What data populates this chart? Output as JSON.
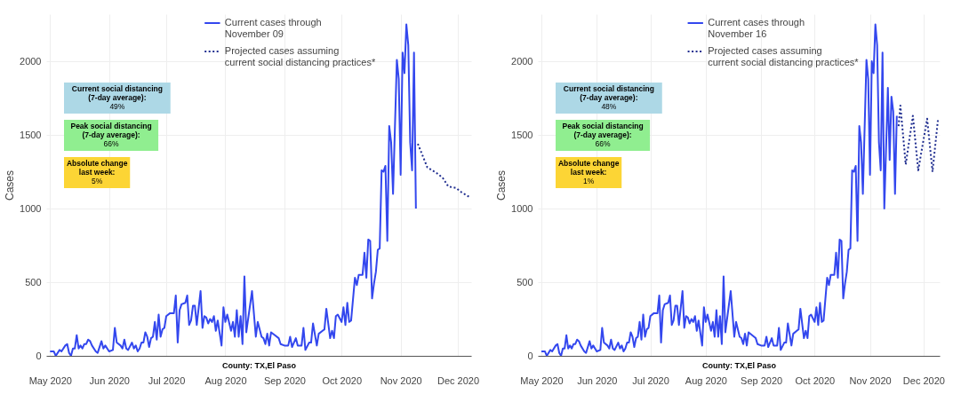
{
  "chart_data": [
    {
      "type": "line",
      "xlabel": "County: TX,El Paso",
      "ylabel": "Cases",
      "xlim": [
        "2020-04-29",
        "2020-12-08"
      ],
      "ylim": [
        0,
        2320
      ],
      "xticks": [
        {
          "value": "2020-05-01",
          "label": "May 2020"
        },
        {
          "value": "2020-06-01",
          "label": "Jun 2020"
        },
        {
          "value": "2020-07-01",
          "label": "Jul 2020"
        },
        {
          "value": "2020-08-01",
          "label": "Aug 2020"
        },
        {
          "value": "2020-09-01",
          "label": "Sep 2020"
        },
        {
          "value": "2020-10-01",
          "label": "Oct 2020"
        },
        {
          "value": "2020-11-01",
          "label": "Nov 2020"
        },
        {
          "value": "2020-12-01",
          "label": "Dec 2020"
        }
      ],
      "yticks": [
        0,
        500,
        1000,
        1500,
        2000
      ],
      "grid": true,
      "legend": "top right",
      "annotations": [
        "Current social distancing (7-day average): 49%",
        "Peak social distancing (7-day average): 66%",
        "Absolute change last week: 5%"
      ],
      "series": [
        {
          "name": "Current cases through November 09",
          "color": "#3347ee",
          "line_style": "solid",
          "x": [
            "2020-05-01",
            "2020-05-03",
            "2020-05-04",
            "2020-05-06",
            "2020-05-07",
            "2020-05-09",
            "2020-05-10",
            "2020-05-11",
            "2020-05-12",
            "2020-05-13",
            "2020-05-14",
            "2020-05-15",
            "2020-05-16",
            "2020-05-17",
            "2020-05-18",
            "2020-05-19",
            "2020-05-20",
            "2020-05-21",
            "2020-05-22",
            "2020-05-23",
            "2020-05-25",
            "2020-05-26",
            "2020-05-28",
            "2020-05-29",
            "2020-05-30",
            "2020-06-01",
            "2020-06-03",
            "2020-06-04",
            "2020-06-05",
            "2020-06-07",
            "2020-06-08",
            "2020-06-09",
            "2020-06-10",
            "2020-06-11",
            "2020-06-13",
            "2020-06-14",
            "2020-06-15",
            "2020-06-16",
            "2020-06-17",
            "2020-06-18",
            "2020-06-19",
            "2020-06-20",
            "2020-06-21",
            "2020-06-22",
            "2020-06-23",
            "2020-06-24",
            "2020-06-25",
            "2020-06-26",
            "2020-06-27",
            "2020-06-28",
            "2020-06-29",
            "2020-06-30",
            "2020-07-01",
            "2020-07-03",
            "2020-07-05",
            "2020-07-06",
            "2020-07-07",
            "2020-07-08",
            "2020-07-09",
            "2020-07-11",
            "2020-07-12",
            "2020-07-13",
            "2020-07-14",
            "2020-07-15",
            "2020-07-16",
            "2020-07-17",
            "2020-07-19",
            "2020-07-20",
            "2020-07-21",
            "2020-07-22",
            "2020-07-23",
            "2020-07-24",
            "2020-07-25",
            "2020-07-26",
            "2020-07-27",
            "2020-07-28",
            "2020-07-30",
            "2020-07-31",
            "2020-08-01",
            "2020-08-02",
            "2020-08-04",
            "2020-08-05",
            "2020-08-06",
            "2020-08-07",
            "2020-08-08",
            "2020-08-09",
            "2020-08-10",
            "2020-08-11",
            "2020-08-12",
            "2020-08-15",
            "2020-08-17",
            "2020-08-18",
            "2020-08-20",
            "2020-08-21",
            "2020-08-22",
            "2020-08-23",
            "2020-08-24",
            "2020-08-25",
            "2020-08-27",
            "2020-08-29",
            "2020-08-30",
            "2020-09-01",
            "2020-09-03",
            "2020-09-04",
            "2020-09-05",
            "2020-09-07",
            "2020-09-08",
            "2020-09-10",
            "2020-09-11",
            "2020-09-12",
            "2020-09-14",
            "2020-09-15",
            "2020-09-16",
            "2020-09-18",
            "2020-09-19",
            "2020-09-21",
            "2020-09-22",
            "2020-09-23",
            "2020-09-25",
            "2020-09-26",
            "2020-09-27",
            "2020-09-28",
            "2020-09-29",
            "2020-10-01",
            "2020-10-02",
            "2020-10-03",
            "2020-10-04",
            "2020-10-05",
            "2020-10-06",
            "2020-10-08",
            "2020-10-09",
            "2020-10-10",
            "2020-10-12",
            "2020-10-13",
            "2020-10-14",
            "2020-10-15",
            "2020-10-16",
            "2020-10-17",
            "2020-10-18",
            "2020-10-19",
            "2020-10-20",
            "2020-10-21",
            "2020-10-22",
            "2020-10-23",
            "2020-10-24",
            "2020-10-25",
            "2020-10-26",
            "2020-10-27",
            "2020-10-28",
            "2020-10-30",
            "2020-10-31",
            "2020-11-01",
            "2020-11-02",
            "2020-11-03",
            "2020-11-04",
            "2020-11-05",
            "2020-11-06",
            "2020-11-07",
            "2020-11-08",
            "2020-11-09"
          ],
          "values": [
            30,
            30,
            0,
            40,
            30,
            70,
            80,
            20,
            0,
            50,
            50,
            140,
            50,
            70,
            50,
            80,
            80,
            110,
            100,
            70,
            30,
            20,
            100,
            50,
            70,
            30,
            40,
            190,
            90,
            70,
            50,
            110,
            50,
            40,
            90,
            50,
            70,
            30,
            50,
            90,
            90,
            160,
            130,
            60,
            120,
            130,
            230,
            110,
            280,
            130,
            180,
            190,
            270,
            290,
            290,
            410,
            90,
            310,
            350,
            360,
            410,
            210,
            240,
            340,
            340,
            210,
            440,
            190,
            270,
            260,
            220,
            250,
            230,
            270,
            170,
            240,
            70,
            330,
            230,
            280,
            170,
            230,
            130,
            310,
            130,
            270,
            80,
            540,
            160,
            440,
            130,
            230,
            130,
            120,
            80,
            150,
            70,
            160,
            140,
            120,
            80,
            70,
            70,
            130,
            60,
            120,
            70,
            70,
            190,
            40,
            90,
            90,
            220,
            70,
            150,
            170,
            180,
            320,
            120,
            170,
            120,
            270,
            280,
            230,
            330,
            210,
            360,
            230,
            240,
            530,
            480,
            550,
            550,
            700,
            530,
            790,
            780,
            390,
            490,
            570,
            720,
            730,
            1260,
            1250,
            1290,
            780,
            1560,
            1450,
            1100,
            2010,
            1880,
            1230,
            2060,
            1920,
            2250,
            2110,
            1450,
            1260,
            2060,
            1000
          ]
        },
        {
          "name": "Projected cases assuming current social distancing practices*",
          "color": "#1f2d8f",
          "line_style": "dotted",
          "x": [
            "2020-11-10",
            "2020-11-15",
            "2020-11-20",
            "2020-11-23",
            "2020-11-26",
            "2020-11-30",
            "2020-12-03",
            "2020-12-07"
          ],
          "values": [
            1440,
            1280,
            1240,
            1210,
            1150,
            1140,
            1110,
            1080
          ]
        }
      ]
    },
    {
      "type": "line",
      "xlabel": "County: TX,El Paso",
      "ylabel": "Cases",
      "xlim": [
        "2020-04-29",
        "2020-12-10"
      ],
      "ylim": [
        0,
        2320
      ],
      "xticks": [
        {
          "value": "2020-05-01",
          "label": "May 2020"
        },
        {
          "value": "2020-06-01",
          "label": "Jun 2020"
        },
        {
          "value": "2020-07-01",
          "label": "Jul 2020"
        },
        {
          "value": "2020-08-01",
          "label": "Aug 2020"
        },
        {
          "value": "2020-09-01",
          "label": "Sep 2020"
        },
        {
          "value": "2020-10-01",
          "label": "Oct 2020"
        },
        {
          "value": "2020-11-01",
          "label": "Nov 2020"
        },
        {
          "value": "2020-12-01",
          "label": "Dec 2020"
        }
      ],
      "yticks": [
        0,
        500,
        1000,
        1500,
        2000
      ],
      "grid": true,
      "legend": "top right",
      "annotations": [
        "Current social distancing (7-day average): 48%",
        "Peak social distancing (7-day average): 66%",
        "Absolute change last week: 1%"
      ],
      "series": [
        {
          "name": "Current cases through November 16",
          "color": "#3347ee",
          "line_style": "solid",
          "x": [
            "2020-05-01",
            "2020-05-03",
            "2020-05-04",
            "2020-05-06",
            "2020-05-07",
            "2020-05-09",
            "2020-05-10",
            "2020-05-11",
            "2020-05-12",
            "2020-05-13",
            "2020-05-14",
            "2020-05-15",
            "2020-05-16",
            "2020-05-17",
            "2020-05-18",
            "2020-05-19",
            "2020-05-20",
            "2020-05-21",
            "2020-05-22",
            "2020-05-23",
            "2020-05-25",
            "2020-05-26",
            "2020-05-28",
            "2020-05-29",
            "2020-05-30",
            "2020-06-01",
            "2020-06-03",
            "2020-06-04",
            "2020-06-05",
            "2020-06-07",
            "2020-06-08",
            "2020-06-09",
            "2020-06-10",
            "2020-06-11",
            "2020-06-13",
            "2020-06-14",
            "2020-06-15",
            "2020-06-16",
            "2020-06-17",
            "2020-06-18",
            "2020-06-19",
            "2020-06-20",
            "2020-06-21",
            "2020-06-22",
            "2020-06-23",
            "2020-06-24",
            "2020-06-25",
            "2020-06-26",
            "2020-06-27",
            "2020-06-28",
            "2020-06-29",
            "2020-06-30",
            "2020-07-01",
            "2020-07-03",
            "2020-07-05",
            "2020-07-06",
            "2020-07-07",
            "2020-07-08",
            "2020-07-09",
            "2020-07-11",
            "2020-07-12",
            "2020-07-13",
            "2020-07-14",
            "2020-07-15",
            "2020-07-16",
            "2020-07-17",
            "2020-07-19",
            "2020-07-20",
            "2020-07-21",
            "2020-07-22",
            "2020-07-23",
            "2020-07-24",
            "2020-07-25",
            "2020-07-26",
            "2020-07-27",
            "2020-07-28",
            "2020-07-30",
            "2020-07-31",
            "2020-08-01",
            "2020-08-02",
            "2020-08-04",
            "2020-08-05",
            "2020-08-06",
            "2020-08-07",
            "2020-08-08",
            "2020-08-09",
            "2020-08-10",
            "2020-08-11",
            "2020-08-12",
            "2020-08-15",
            "2020-08-17",
            "2020-08-18",
            "2020-08-20",
            "2020-08-21",
            "2020-08-22",
            "2020-08-23",
            "2020-08-24",
            "2020-08-25",
            "2020-08-27",
            "2020-08-29",
            "2020-08-30",
            "2020-09-01",
            "2020-09-03",
            "2020-09-04",
            "2020-09-05",
            "2020-09-07",
            "2020-09-08",
            "2020-09-10",
            "2020-09-11",
            "2020-09-12",
            "2020-09-14",
            "2020-09-15",
            "2020-09-16",
            "2020-09-18",
            "2020-09-19",
            "2020-09-21",
            "2020-09-22",
            "2020-09-23",
            "2020-09-25",
            "2020-09-26",
            "2020-09-27",
            "2020-09-28",
            "2020-09-29",
            "2020-10-01",
            "2020-10-02",
            "2020-10-03",
            "2020-10-04",
            "2020-10-05",
            "2020-10-06",
            "2020-10-08",
            "2020-10-09",
            "2020-10-10",
            "2020-10-12",
            "2020-10-13",
            "2020-10-14",
            "2020-10-15",
            "2020-10-16",
            "2020-10-17",
            "2020-10-18",
            "2020-10-19",
            "2020-10-20",
            "2020-10-21",
            "2020-10-22",
            "2020-10-23",
            "2020-10-24",
            "2020-10-25",
            "2020-10-26",
            "2020-10-27",
            "2020-10-28",
            "2020-10-30",
            "2020-10-31",
            "2020-11-01",
            "2020-11-02",
            "2020-11-03",
            "2020-11-04",
            "2020-11-05",
            "2020-11-06",
            "2020-11-07",
            "2020-11-08",
            "2020-11-09",
            "2020-11-11",
            "2020-11-12",
            "2020-11-13",
            "2020-11-14",
            "2020-11-15",
            "2020-11-16"
          ],
          "values": [
            30,
            30,
            0,
            40,
            30,
            70,
            80,
            20,
            0,
            50,
            50,
            140,
            50,
            70,
            50,
            80,
            80,
            110,
            100,
            70,
            30,
            20,
            100,
            50,
            70,
            30,
            40,
            190,
            90,
            70,
            50,
            110,
            50,
            40,
            90,
            50,
            70,
            30,
            50,
            90,
            90,
            160,
            130,
            60,
            120,
            130,
            230,
            110,
            280,
            130,
            180,
            190,
            270,
            290,
            290,
            410,
            90,
            310,
            350,
            360,
            410,
            210,
            240,
            340,
            340,
            210,
            440,
            190,
            270,
            260,
            220,
            250,
            230,
            270,
            170,
            240,
            70,
            330,
            230,
            280,
            170,
            230,
            130,
            310,
            130,
            270,
            80,
            540,
            160,
            440,
            130,
            230,
            130,
            120,
            80,
            150,
            70,
            160,
            140,
            120,
            80,
            70,
            70,
            130,
            60,
            120,
            70,
            70,
            190,
            40,
            90,
            90,
            220,
            70,
            150,
            170,
            180,
            320,
            120,
            170,
            120,
            270,
            280,
            230,
            330,
            210,
            360,
            230,
            240,
            530,
            480,
            550,
            550,
            700,
            530,
            790,
            780,
            390,
            490,
            570,
            720,
            730,
            1260,
            1250,
            1290,
            780,
            1560,
            1450,
            1100,
            2010,
            1880,
            1230,
            2000,
            1920,
            2250,
            2110,
            1450,
            1260,
            2060,
            1000,
            1820,
            1330,
            1760,
            1660,
            1100,
            1630
          ]
        },
        {
          "name": "Projected cases assuming current social distancing practices*",
          "color": "#1f2d8f",
          "line_style": "dotted",
          "x": [
            "2020-11-17",
            "2020-11-18",
            "2020-11-21",
            "2020-11-25",
            "2020-11-28",
            "2020-12-03",
            "2020-12-06",
            "2020-12-09"
          ],
          "values": [
            1560,
            1700,
            1300,
            1630,
            1260,
            1610,
            1250,
            1600
          ]
        }
      ]
    }
  ]
}
